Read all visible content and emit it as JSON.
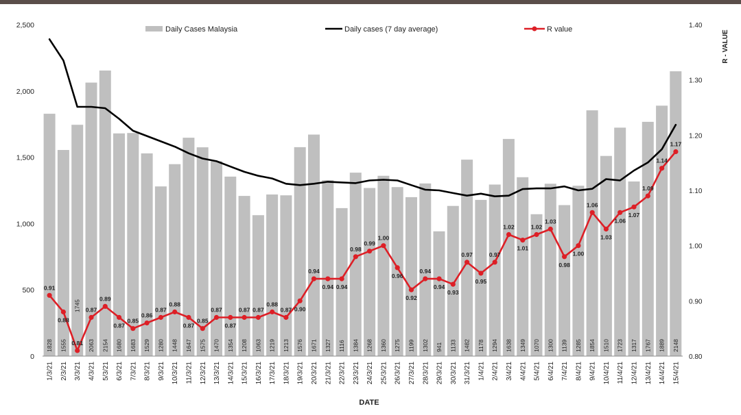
{
  "chart_data": {
    "type": "bar",
    "title": "",
    "xlabel": "DATE",
    "ylabel": "",
    "y2label": "R - VALUE",
    "ylim": [
      0,
      2500
    ],
    "y2lim": [
      0.8,
      1.4
    ],
    "yticks": [
      "0",
      "500",
      "1,000",
      "1,500",
      "2,000",
      "2,500"
    ],
    "y2ticks": [
      "0.80",
      "0.90",
      "1.00",
      "1.10",
      "1.20",
      "1.30",
      "1.40"
    ],
    "grid": false,
    "legend_position": "top",
    "categories": [
      "1/3/21",
      "2/3/21",
      "3/3/21",
      "4/3/21",
      "5/3/21",
      "6/3/21",
      "7/3/21",
      "8/3/21",
      "9/3/21",
      "10/3/21",
      "11/3/21",
      "12/3/21",
      "13/3/21",
      "14/3/21",
      "15/3/21",
      "16/3/21",
      "17/3/21",
      "18/3/21",
      "19/3/21",
      "20/3/21",
      "21/3/21",
      "22/3/21",
      "23/3/21",
      "24/3/21",
      "25/3/21",
      "26/3/21",
      "27/3/21",
      "28/3/21",
      "29/3/21",
      "30/3/21",
      "31/3/21",
      "1/4/21",
      "2/4/21",
      "3/4/21",
      "4/4/21",
      "5/4/21",
      "6/4/21",
      "7/4/21",
      "8/4/21",
      "9/4/21",
      "10/4/21",
      "11/4/21",
      "12/4/21",
      "13/4/21",
      "14/4/21",
      "15/4/21"
    ],
    "series": [
      {
        "name": "Daily Cases Malaysia",
        "type": "bar",
        "color": "#bfbfbf",
        "values": [
          1828,
          1555,
          1745,
          2063,
          2154,
          1680,
          1683,
          1529,
          1280,
          1448,
          1647,
          1575,
          1470,
          1354,
          1208,
          1063,
          1219,
          1213,
          1576,
          1671,
          1327,
          1116,
          1384,
          1268,
          1360,
          1275,
          1199,
          1302,
          941,
          1133,
          1482,
          1178,
          1294,
          1638,
          1349,
          1070,
          1300,
          1139,
          1285,
          1854,
          1510,
          1723,
          1317,
          1767,
          1889,
          2148
        ],
        "labels": [
          "1828",
          "1555",
          "1745",
          "2063",
          "2154",
          "1680",
          "1683",
          "1529",
          "1280",
          "1448",
          "1647",
          "1575",
          "1470",
          "1354",
          "1208",
          "1063",
          "1219",
          "1213",
          "1576",
          "1671",
          "1327",
          "1116",
          "1384",
          "1268",
          "1360",
          "1275",
          "1199",
          "1302",
          "941",
          "1133",
          "1482",
          "1178",
          "1294",
          "1638",
          "1349",
          "1070",
          "1300",
          "1139",
          "1285",
          "1854",
          "1510",
          "1723",
          "1317",
          "1767",
          "1889",
          "2148"
        ]
      },
      {
        "name": "Daily cases (7 day average)",
        "type": "line",
        "color": "#000000",
        "values": [
          2390,
          2230,
          1880,
          1880,
          1870,
          1790,
          1700,
          1660,
          1620,
          1580,
          1530,
          1490,
          1470,
          1430,
          1390,
          1360,
          1340,
          1300,
          1290,
          1300,
          1315,
          1310,
          1305,
          1325,
          1330,
          1325,
          1290,
          1255,
          1250,
          1230,
          1210,
          1225,
          1205,
          1210,
          1260,
          1265,
          1265,
          1280,
          1250,
          1262,
          1335,
          1325,
          1400,
          1460,
          1560,
          1745
        ],
        "labels": []
      },
      {
        "name": "R value",
        "type": "line",
        "axis": "right",
        "color": "#dd1f26",
        "values": [
          0.91,
          0.88,
          0.81,
          0.87,
          0.89,
          0.87,
          0.85,
          0.86,
          0.87,
          0.88,
          0.87,
          0.85,
          0.87,
          0.87,
          0.87,
          0.87,
          0.88,
          0.87,
          0.9,
          0.94,
          0.94,
          0.94,
          0.98,
          0.99,
          1.0,
          0.96,
          0.92,
          0.94,
          0.94,
          0.93,
          0.97,
          0.95,
          0.97,
          1.02,
          1.01,
          1.02,
          1.03,
          0.98,
          1.0,
          1.06,
          1.03,
          1.06,
          1.07,
          1.09,
          1.14,
          1.17
        ],
        "labels": [
          "0.91",
          "0.88",
          "0.81",
          "0.87",
          "0.89",
          "0.87",
          "0.85",
          "0.86",
          "0.87",
          "0.88",
          "0.87",
          "0.85",
          "0.87",
          "0.87",
          "0.87",
          "0.87",
          "0.88",
          "0.87",
          "0.90",
          "0.94",
          "0.94",
          "0.94",
          "0.98",
          "0.99",
          "1.00",
          "0.96",
          "0.92",
          "0.94",
          "0.94",
          "0.93",
          "0.97",
          "0.95",
          "0.97",
          "1.02",
          "1.01",
          "1.02",
          "1.03",
          "0.98",
          "1.00",
          "1.06",
          "1.03",
          "1.06",
          "1.07",
          "1.09",
          "1.14",
          "1.17"
        ]
      }
    ]
  }
}
